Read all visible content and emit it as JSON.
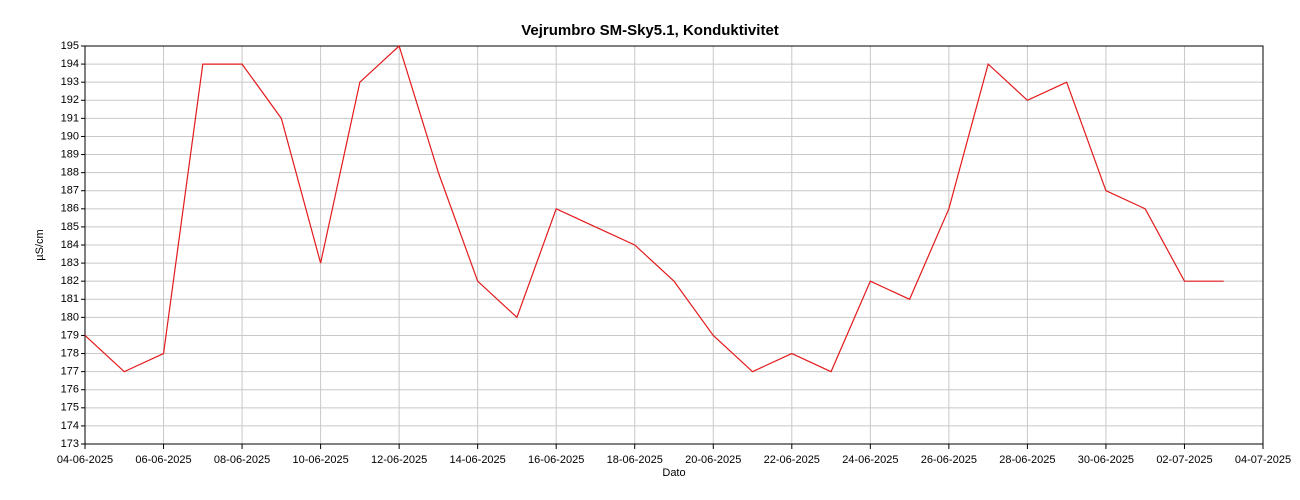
{
  "chart_data": {
    "type": "line",
    "title": "Vejrumbro SM-Sky5.1, Konduktivitet",
    "xlabel": "Dato",
    "ylabel": "µS/cm",
    "x": [
      "04-06-2025",
      "05-06-2025",
      "06-06-2025",
      "07-06-2025",
      "08-06-2025",
      "09-06-2025",
      "10-06-2025",
      "11-06-2025",
      "12-06-2025",
      "13-06-2025",
      "14-06-2025",
      "15-06-2025",
      "16-06-2025",
      "17-06-2025",
      "18-06-2025",
      "19-06-2025",
      "20-06-2025",
      "21-06-2025",
      "22-06-2025",
      "23-06-2025",
      "24-06-2025",
      "25-06-2025",
      "26-06-2025",
      "27-06-2025",
      "28-06-2025",
      "29-06-2025",
      "30-06-2025",
      "01-07-2025",
      "02-07-2025",
      "03-07-2025"
    ],
    "series": [
      {
        "name": "Konduktivitet",
        "color": "#e31a1c",
        "values": [
          179,
          177,
          178,
          194,
          194,
          191,
          183,
          193,
          195,
          188,
          182,
          180,
          186,
          185,
          184,
          182,
          179,
          177,
          178,
          177,
          182,
          181,
          186,
          194,
          192,
          193,
          187,
          186,
          182,
          182
        ]
      }
    ],
    "xlim": [
      "04-06-2025",
      "04-07-2025"
    ],
    "xticks": [
      "04-06-2025",
      "06-06-2025",
      "08-06-2025",
      "10-06-2025",
      "12-06-2025",
      "14-06-2025",
      "16-06-2025",
      "18-06-2025",
      "20-06-2025",
      "22-06-2025",
      "24-06-2025",
      "26-06-2025",
      "28-06-2025",
      "30-06-2025",
      "02-07-2025",
      "04-07-2025"
    ],
    "ylim": [
      173,
      195
    ],
    "yticks": [
      173,
      174,
      175,
      176,
      177,
      178,
      179,
      180,
      181,
      182,
      183,
      184,
      185,
      186,
      187,
      188,
      189,
      190,
      191,
      192,
      193,
      194,
      195
    ],
    "grid": true
  }
}
